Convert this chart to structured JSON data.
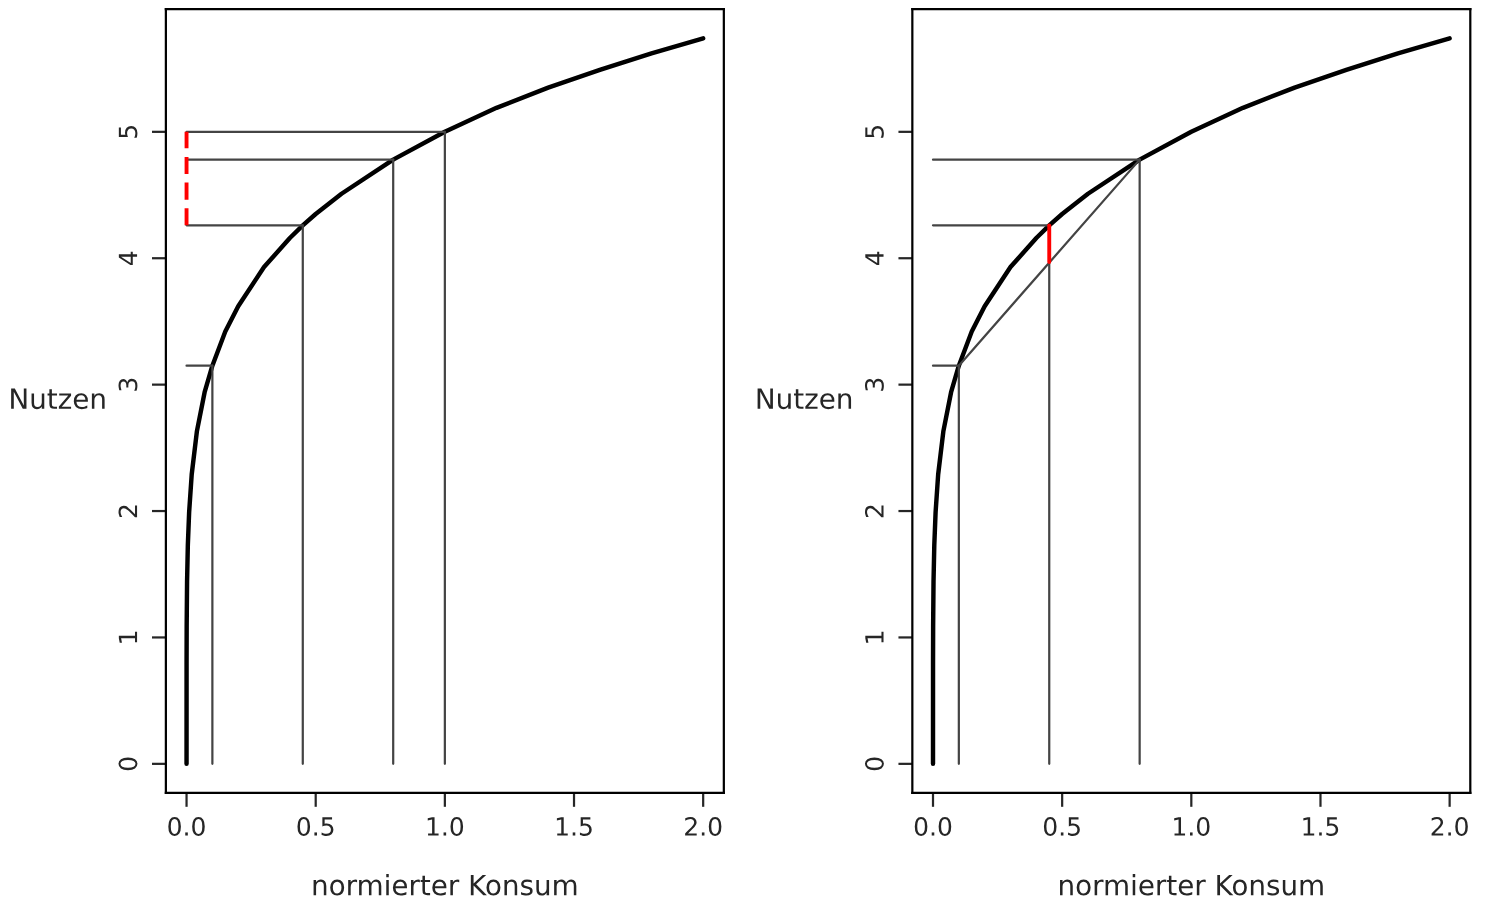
{
  "chart_data": [
    {
      "type": "line",
      "xlabel": "normierter Konsum",
      "ylabel": "Nutzen",
      "xlim": [
        -0.08,
        2.08
      ],
      "ylim": [
        -0.23,
        5.97
      ],
      "xticks": [
        {
          "value": 0,
          "label": "0.0"
        },
        {
          "value": 0.5,
          "label": "0.5"
        },
        {
          "value": 1,
          "label": "1.0"
        },
        {
          "value": 1.5,
          "label": "1.5"
        },
        {
          "value": 2,
          "label": "2.0"
        }
      ],
      "yticks": [
        0,
        1,
        2,
        3,
        4,
        5
      ],
      "grid": false,
      "legend": false,
      "marker": "none",
      "series": [
        {
          "color": "#000000",
          "x": [
            0,
            0.0001,
            0.0005,
            0.002,
            0.005,
            0.01,
            0.02,
            0.04,
            0.07,
            0.1,
            0.15,
            0.2,
            0.3,
            0.4,
            0.45,
            0.5,
            0.6,
            0.8,
            1.0,
            1.2,
            1.4,
            1.6,
            1.8,
            2.0
          ],
          "values": [
            0,
            0.79,
            1.09,
            1.44,
            1.73,
            1.99,
            2.29,
            2.63,
            2.94,
            3.15,
            3.42,
            3.62,
            3.93,
            4.16,
            4.26,
            4.35,
            4.51,
            4.78,
            5.0,
            5.19,
            5.35,
            5.49,
            5.62,
            5.74
          ]
        },
        {
          "color": "#444444",
          "x": [
            0.1,
            0.1
          ],
          "values": [
            0,
            3.15
          ]
        },
        {
          "color": "#444444",
          "x": [
            0.45,
            0.45
          ],
          "values": [
            0,
            4.26
          ]
        },
        {
          "color": "#444444",
          "x": [
            0.8,
            0.8
          ],
          "values": [
            0,
            4.78
          ]
        },
        {
          "color": "#444444",
          "x": [
            1.0,
            1.0
          ],
          "values": [
            0,
            5.0
          ]
        },
        {
          "color": "#444444",
          "x": [
            0,
            0.1
          ],
          "values": [
            3.15,
            3.15
          ]
        },
        {
          "color": "#444444",
          "x": [
            0,
            0.45
          ],
          "values": [
            4.26,
            4.26
          ]
        },
        {
          "color": "#444444",
          "x": [
            0,
            0.8
          ],
          "values": [
            4.78,
            4.78
          ]
        },
        {
          "color": "#444444",
          "x": [
            0,
            1.0
          ],
          "values": [
            5.0,
            5.0
          ]
        },
        {
          "color": "#ff0000",
          "line_style": "dashed",
          "x": [
            0,
            0
          ],
          "values": [
            4.26,
            5.0
          ]
        }
      ]
    },
    {
      "type": "line",
      "xlabel": "normierter Konsum",
      "ylabel": "Nutzen",
      "xlim": [
        -0.08,
        2.08
      ],
      "ylim": [
        -0.23,
        5.97
      ],
      "xticks": [
        {
          "value": 0,
          "label": "0.0"
        },
        {
          "value": 0.5,
          "label": "0.5"
        },
        {
          "value": 1,
          "label": "1.0"
        },
        {
          "value": 1.5,
          "label": "1.5"
        },
        {
          "value": 2,
          "label": "2.0"
        }
      ],
      "yticks": [
        0,
        1,
        2,
        3,
        4,
        5
      ],
      "grid": false,
      "legend": false,
      "marker": "none",
      "series": [
        {
          "color": "#000000",
          "x": [
            0,
            0.0001,
            0.0005,
            0.002,
            0.005,
            0.01,
            0.02,
            0.04,
            0.07,
            0.1,
            0.15,
            0.2,
            0.3,
            0.4,
            0.45,
            0.5,
            0.6,
            0.8,
            1.0,
            1.2,
            1.4,
            1.6,
            1.8,
            2.0
          ],
          "values": [
            0,
            0.79,
            1.09,
            1.44,
            1.73,
            1.99,
            2.29,
            2.63,
            2.94,
            3.15,
            3.42,
            3.62,
            3.93,
            4.16,
            4.26,
            4.35,
            4.51,
            4.78,
            5.0,
            5.19,
            5.35,
            5.49,
            5.62,
            5.74
          ]
        },
        {
          "color": "#444444",
          "x": [
            0.1,
            0.1
          ],
          "values": [
            0,
            3.15
          ]
        },
        {
          "color": "#444444",
          "x": [
            0.45,
            0.45
          ],
          "values": [
            0,
            4.26
          ]
        },
        {
          "color": "#444444",
          "x": [
            0.8,
            0.8
          ],
          "values": [
            0,
            4.78
          ]
        },
        {
          "color": "#444444",
          "x": [
            0,
            0.1
          ],
          "values": [
            3.15,
            3.15
          ]
        },
        {
          "color": "#444444",
          "x": [
            0,
            0.45
          ],
          "values": [
            4.26,
            4.26
          ]
        },
        {
          "color": "#444444",
          "x": [
            0,
            0.8
          ],
          "values": [
            4.78,
            4.78
          ]
        },
        {
          "color": "#444444",
          "x": [
            0.1,
            0.8
          ],
          "values": [
            3.15,
            4.78
          ]
        },
        {
          "color": "#ff0000",
          "x": [
            0.45,
            0.45
          ],
          "values": [
            3.97,
            4.26
          ]
        }
      ]
    }
  ]
}
